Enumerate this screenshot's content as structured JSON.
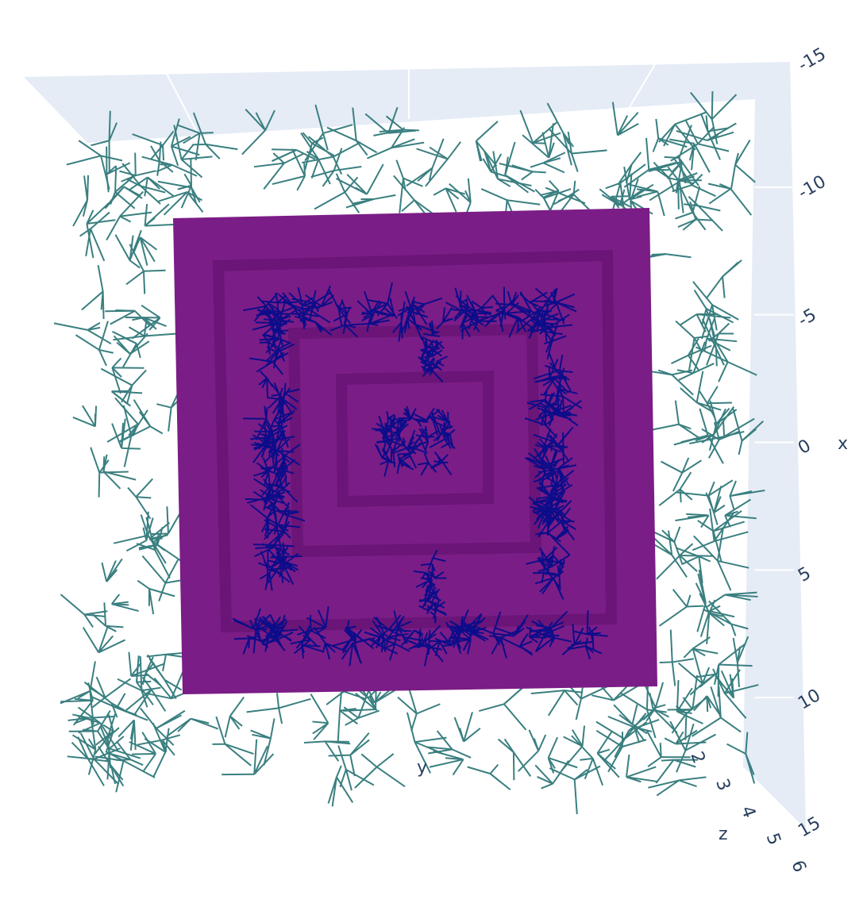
{
  "chart_data": {
    "type": "scene3d",
    "xaxis_title": "x",
    "xlim": [
      -15,
      15
    ],
    "xticks": [
      -15,
      -10,
      -5,
      0,
      5,
      10,
      15
    ],
    "yaxis_title": "y",
    "zaxis_title": "z",
    "zlim": [
      2,
      6
    ],
    "zticks": [
      2,
      3,
      4,
      5,
      6
    ],
    "colors": {
      "outer": "#3a7f80",
      "inner": "#0d0d8a",
      "wall": "#7b1d86"
    }
  }
}
